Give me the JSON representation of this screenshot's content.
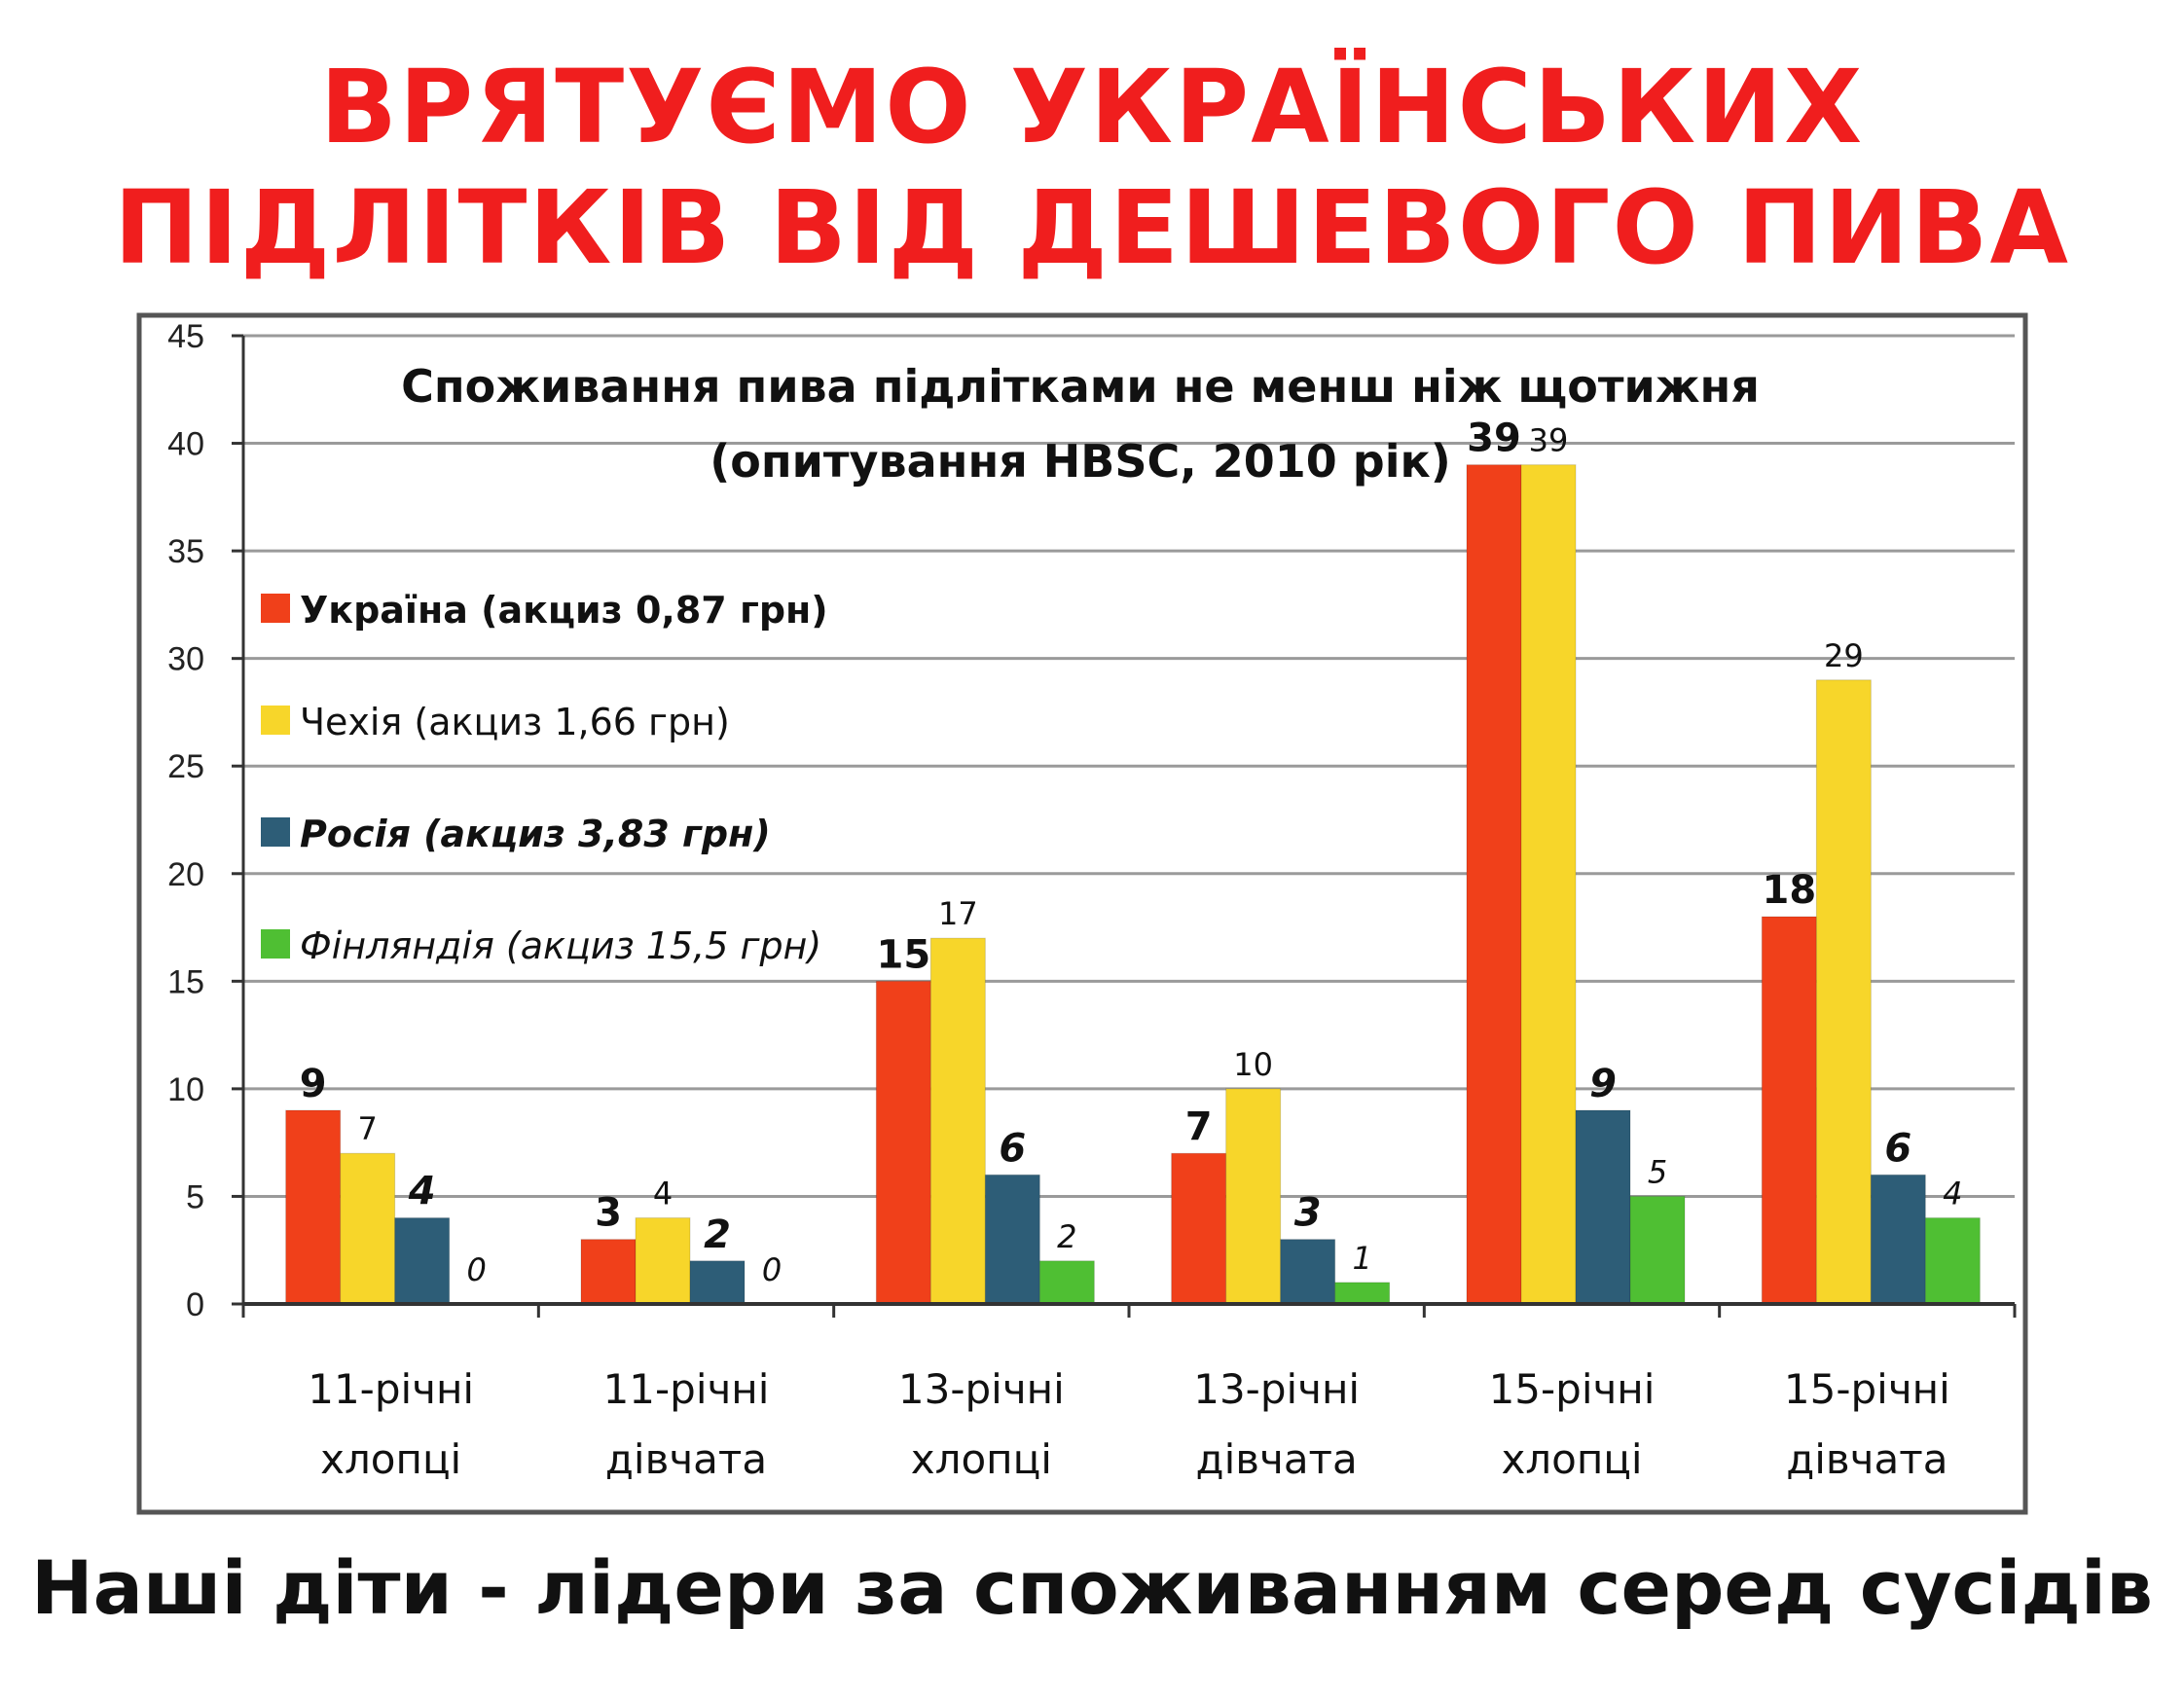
{
  "headline": {
    "line1": "ВРЯТУЄМО УКРАЇНСЬКИХ",
    "line2": "ПІДЛІТКІВ ВІД ДЕШЕВОГО ПИВА"
  },
  "footer": "Наші діти - лідери за споживанням серед сусідів",
  "chart_data": {
    "type": "bar",
    "title": "Споживання пива підлітками не менш ніж щотижня",
    "subtitle": "(опитування HBSC, 2010 рік)",
    "xlabel": "",
    "ylabel": "",
    "ylim": [
      0,
      45
    ],
    "yticks": [
      "0",
      "5",
      "10",
      "15",
      "20",
      "25",
      "30",
      "35",
      "40",
      "45"
    ],
    "grid": true,
    "legend_position": "left",
    "categories": [
      [
        "11-річні",
        "хлопці"
      ],
      [
        "11-річні",
        "дівчата"
      ],
      [
        "13-річні",
        "хлопці"
      ],
      [
        "13-річні",
        "дівчата"
      ],
      [
        "15-річні",
        "хлопці"
      ],
      [
        "15-річні",
        "дівчата"
      ]
    ],
    "series": [
      {
        "name": "Україна (акциз 0,87 грн)",
        "color": "#f0401a",
        "values": [
          9,
          3,
          15,
          7,
          39,
          18
        ]
      },
      {
        "name": "Чехія (акциз 1,66 грн)",
        "color": "#f7d62a",
        "values": [
          7,
          4,
          17,
          10,
          39,
          29
        ]
      },
      {
        "name": "Росія (акциз 3,83 грн)",
        "color": "#2d5d77",
        "values": [
          4,
          2,
          6,
          3,
          9,
          6
        ]
      },
      {
        "name": "Фінляндія (акциз 15,5 грн)",
        "color": "#4fbf33",
        "values": [
          0,
          0,
          2,
          1,
          5,
          4
        ]
      }
    ]
  }
}
